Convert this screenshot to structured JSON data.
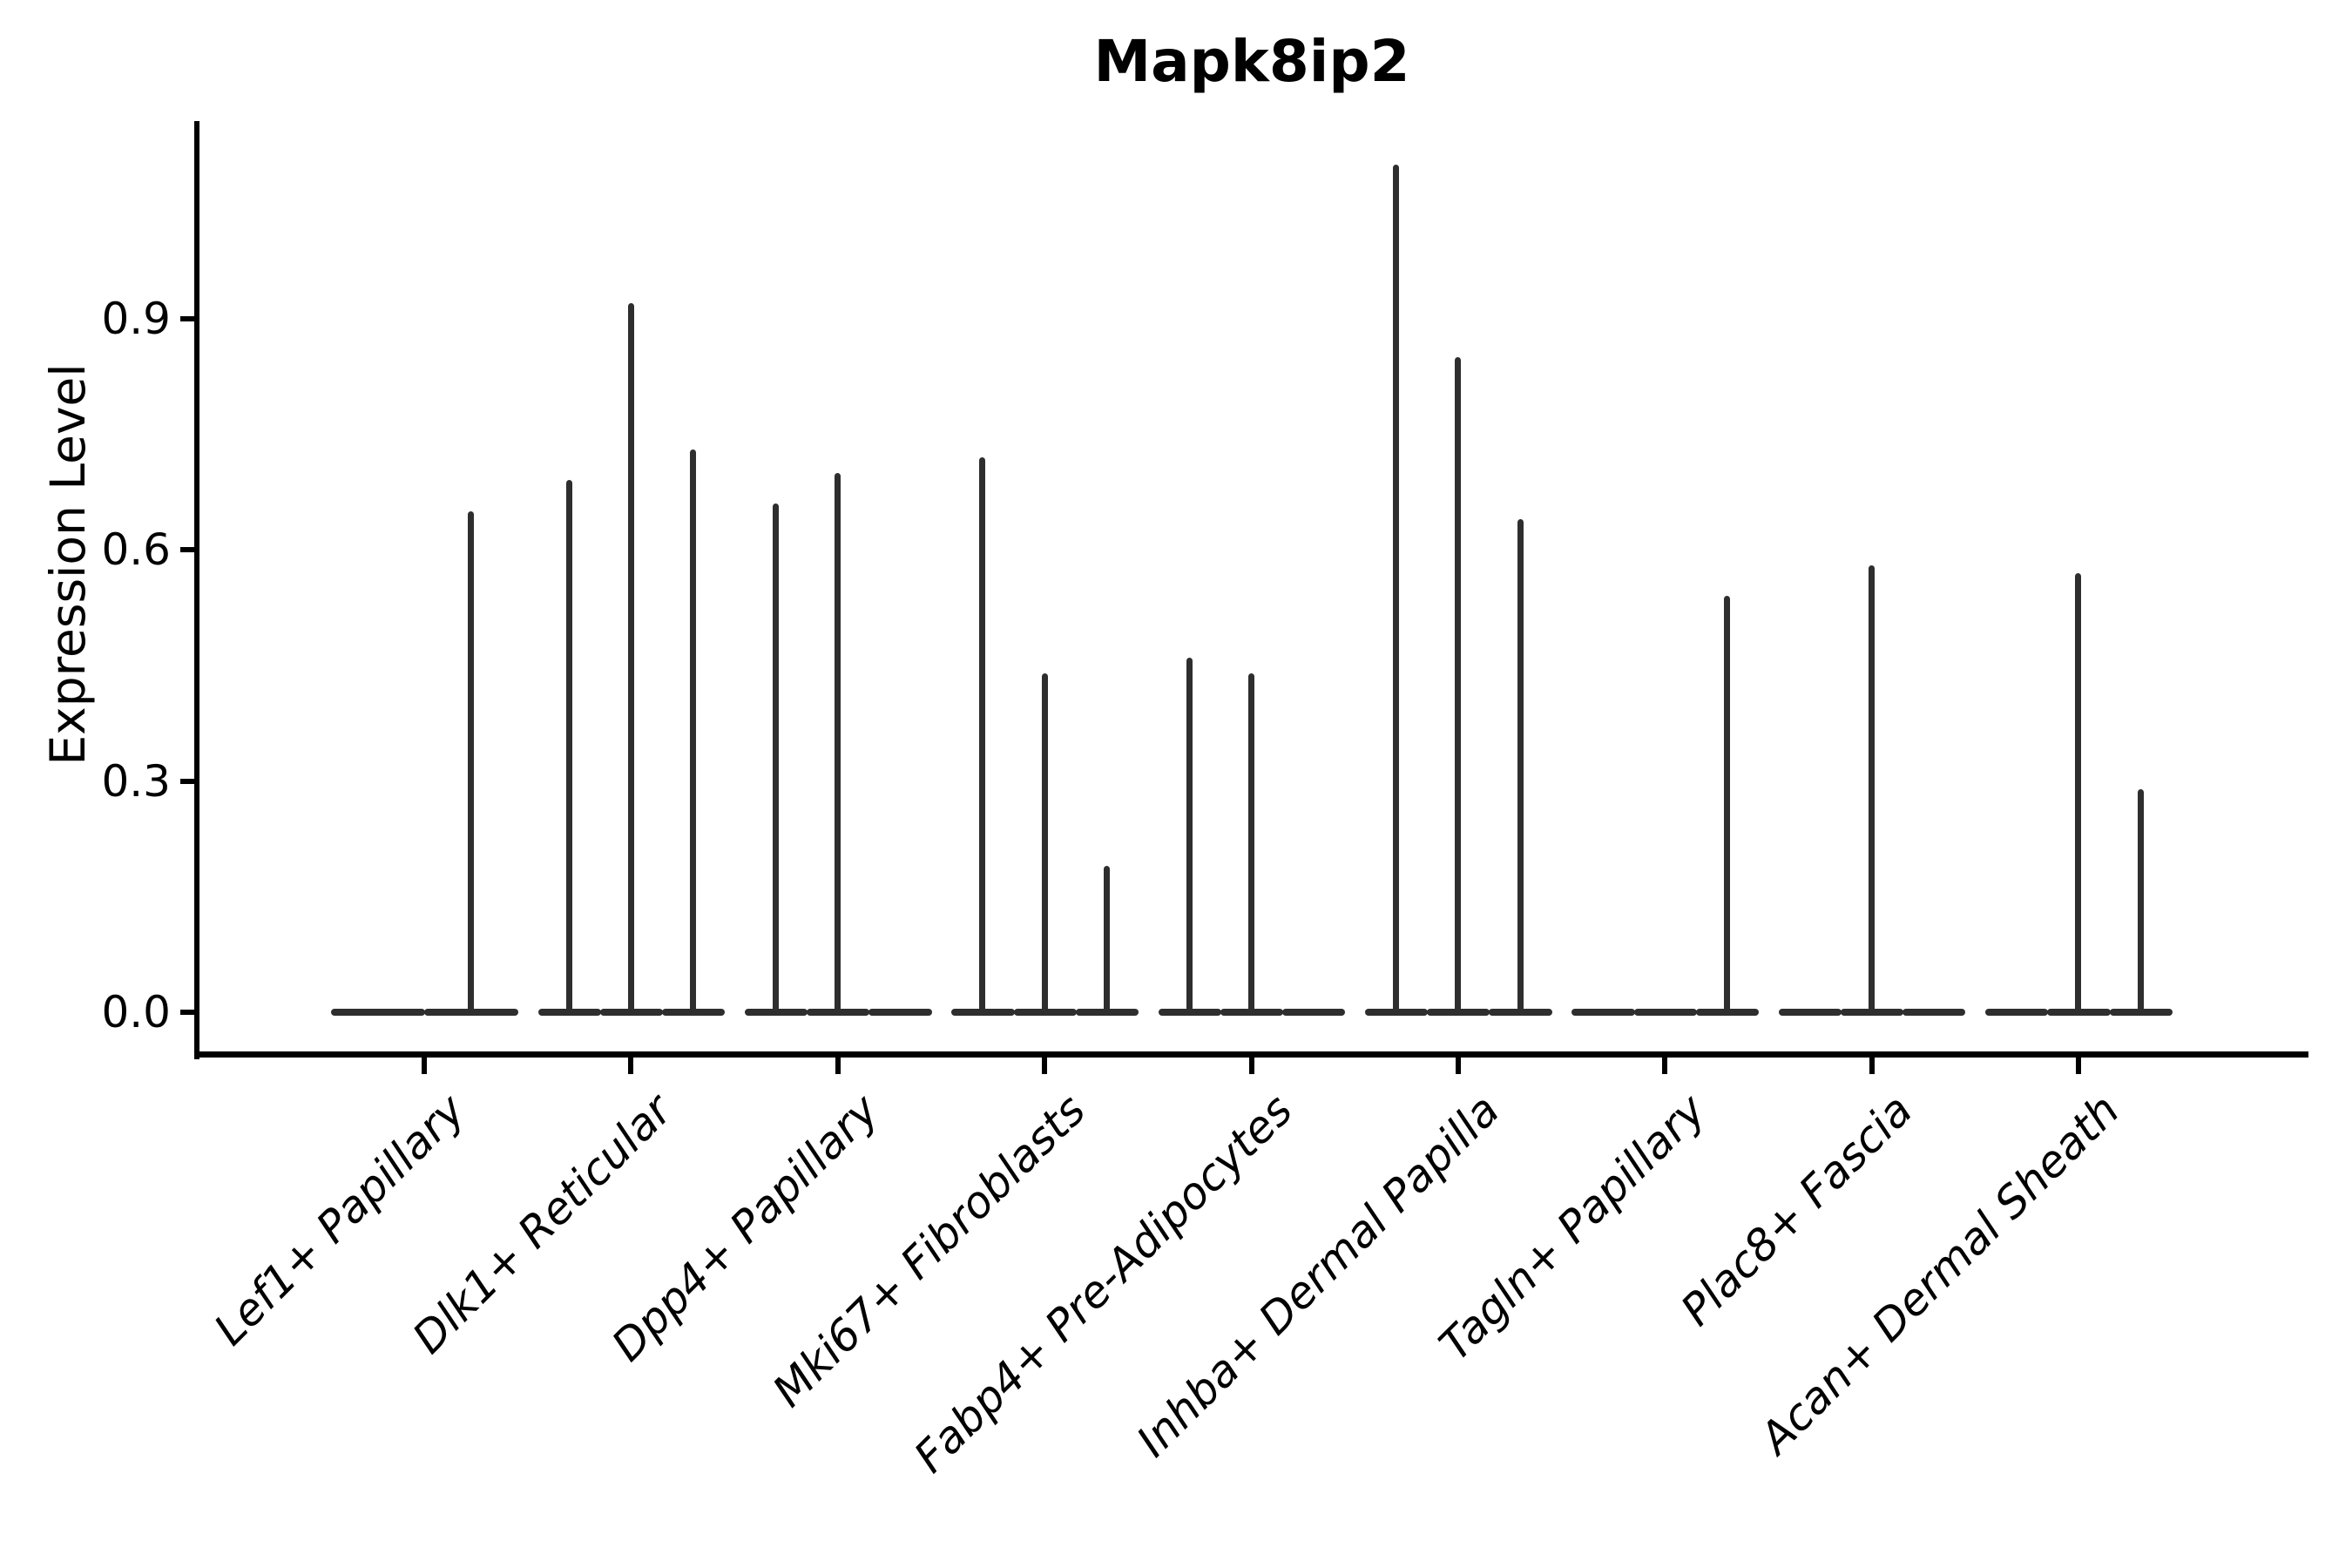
{
  "chart_data": {
    "type": "violin",
    "title": "Mapk8ip2",
    "ylabel": "Expression Level",
    "xlabel": "",
    "yticks": [
      0.0,
      0.3,
      0.6,
      0.9
    ],
    "ytick_labels": [
      "0.0",
      "0.3",
      "0.6",
      "0.9"
    ],
    "ylim": [
      -0.054,
      1.156
    ],
    "legend": "none",
    "grid": false,
    "categories": [
      "Lef1+ Papillary",
      "Dlk1+ Reticular",
      "Dpp4+ Papillary",
      "Mki67+ Fibroblasts",
      "Fabp4+ Pre-Adipocytes",
      "Inhba+ Dermal Papilla",
      "Tagln+ Papillary",
      "Plac8+ Fascia",
      "Acan+ Dermal Sheath"
    ],
    "groups": [
      {
        "category": "Lef1+ Papillary",
        "violin_peaks": [
          0,
          0.65
        ]
      },
      {
        "category": "Dlk1+ Reticular",
        "violin_peaks": [
          0.69,
          0.92,
          0.73
        ]
      },
      {
        "category": "Dpp4+ Papillary",
        "violin_peaks": [
          0.66,
          0.7,
          0
        ]
      },
      {
        "category": "Mki67+ Fibroblasts",
        "violin_peaks": [
          0.72,
          0.44,
          0.19
        ]
      },
      {
        "category": "Fabp4+ Pre-Adipocytes",
        "violin_peaks": [
          0.46,
          0.44,
          0
        ]
      },
      {
        "category": "Inhba+ Dermal Papilla",
        "violin_peaks": [
          1.1,
          0.85,
          0.64
        ]
      },
      {
        "category": "Tagln+ Papillary",
        "violin_peaks": [
          0,
          0,
          0.54
        ]
      },
      {
        "category": "Plac8+ Fascia",
        "violin_peaks": [
          0,
          0.58,
          0
        ]
      },
      {
        "category": "Acan+ Dermal Sheath",
        "violin_peaks": [
          0,
          0.57,
          0.29
        ]
      }
    ],
    "colors": {
      "violin": "#2e2e2e",
      "axis": "#000000",
      "text": "#000000",
      "background": "#ffffff"
    }
  }
}
